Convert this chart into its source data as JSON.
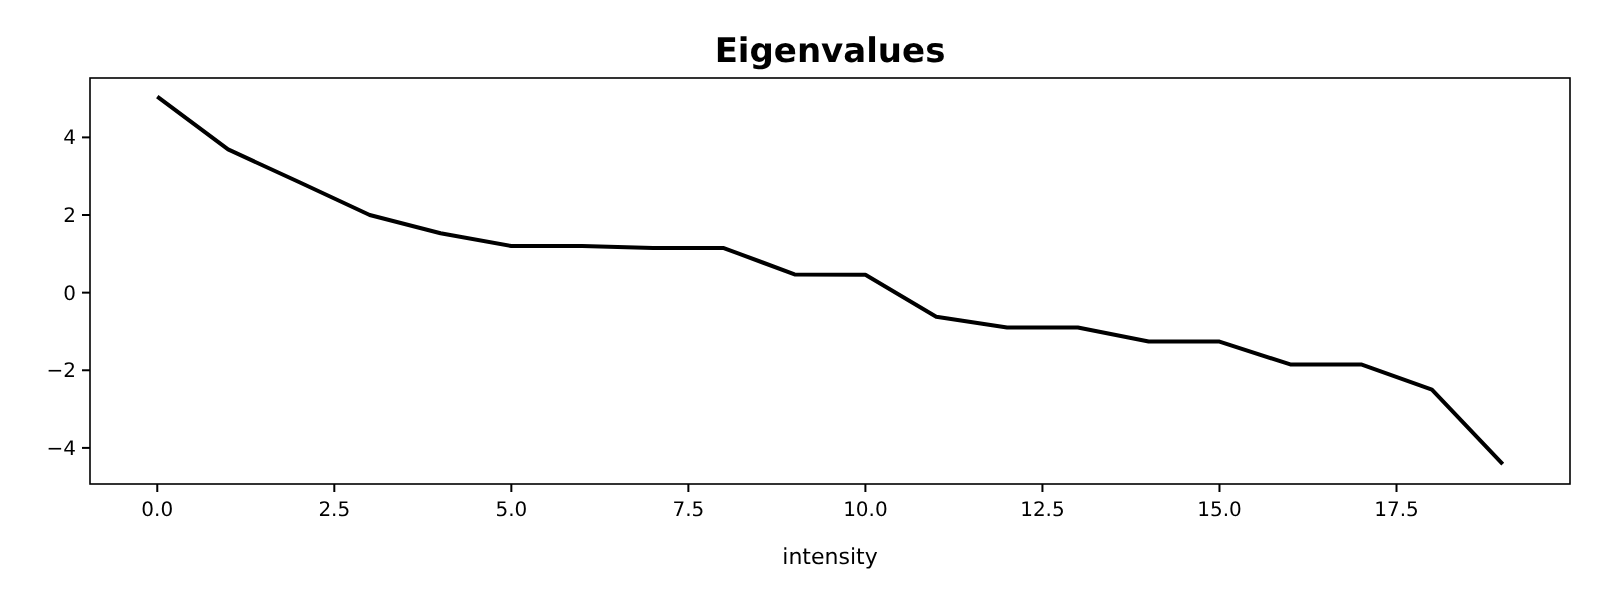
{
  "chart_data": {
    "type": "line",
    "title": "Eigenvalues",
    "xlabel": "intensity",
    "x": [
      0,
      1,
      2,
      3,
      4,
      5,
      6,
      7,
      8,
      9,
      10,
      11,
      12,
      13,
      14,
      15,
      16,
      17,
      18,
      19
    ],
    "series": [
      {
        "color": "#000000",
        "values": [
          5.05,
          3.69,
          2.85,
          2.0,
          1.53,
          1.2,
          1.2,
          1.15,
          1.15,
          0.47,
          0.46,
          -0.62,
          -0.9,
          -0.9,
          -1.26,
          -1.26,
          -1.85,
          -1.85,
          -2.5,
          -4.42
        ]
      }
    ],
    "xlim": [
      -0.95,
      19.95
    ],
    "ylim": [
      -4.93,
      5.53
    ],
    "xticks": [
      {
        "value": 0,
        "label": "0.0"
      },
      {
        "value": 2.5,
        "label": "2.5"
      },
      {
        "value": 5,
        "label": "5.0"
      },
      {
        "value": 7.5,
        "label": "7.5"
      },
      {
        "value": 10,
        "label": "10.0"
      },
      {
        "value": 12.5,
        "label": "12.5"
      },
      {
        "value": 15,
        "label": "15.0"
      },
      {
        "value": 17.5,
        "label": "17.5"
      }
    ],
    "yticks": [
      {
        "value": -4,
        "label": "−4"
      },
      {
        "value": -2,
        "label": "−2"
      },
      0,
      2,
      4
    ],
    "grid": false,
    "marker": "none",
    "line_style": "solid"
  }
}
